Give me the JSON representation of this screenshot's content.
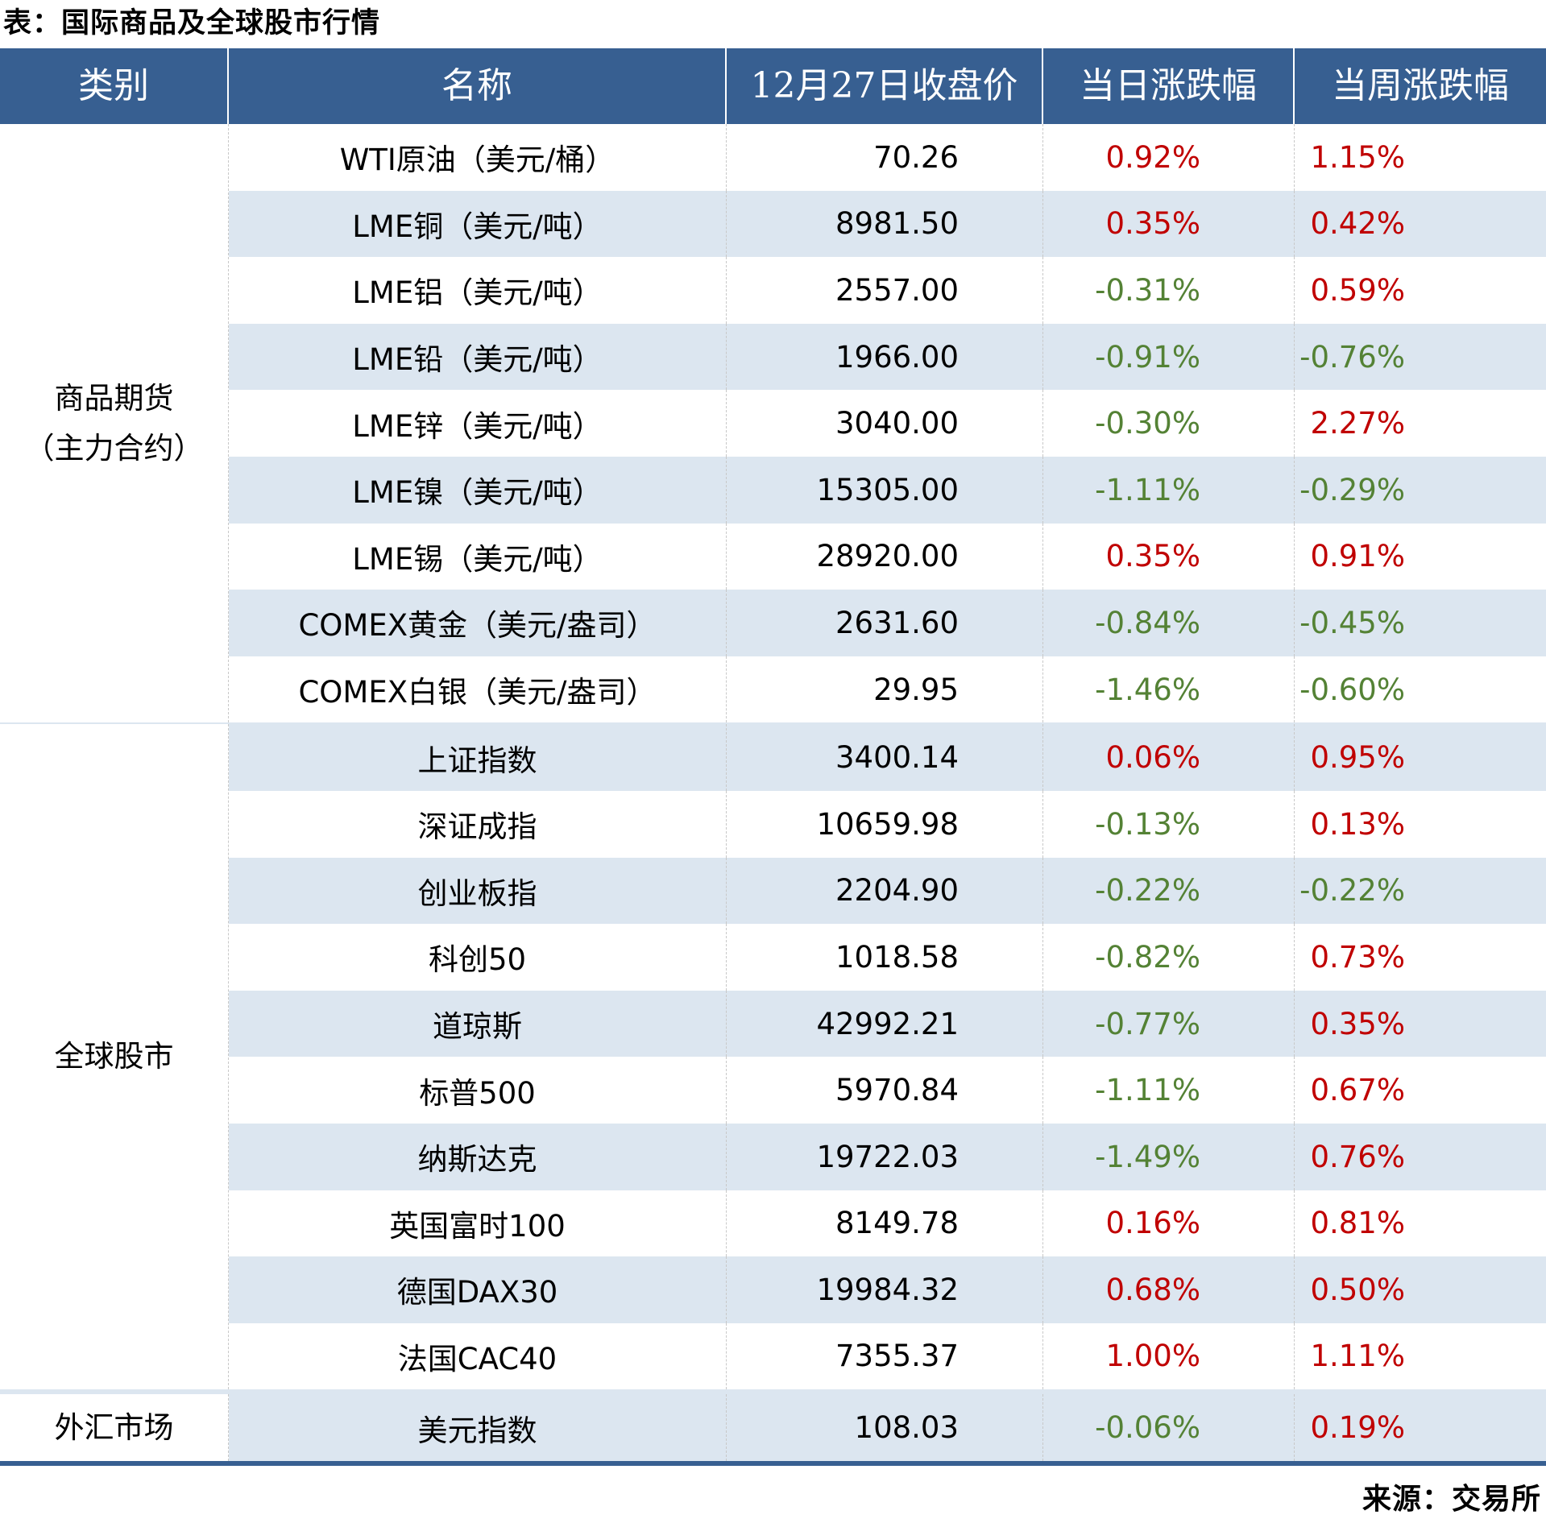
{
  "title": "表：国际商品及全球股市行情",
  "colors": {
    "header_bg": "#375F91",
    "stripe": "#DCE6F0",
    "up": "#C00000",
    "down": "#548235"
  },
  "header": {
    "category": "类别",
    "name": "名称",
    "price": "12月27日收盘价",
    "daily": "当日涨跌幅",
    "weekly": "当周涨跌幅"
  },
  "groups": [
    {
      "category_line1": "商品期货",
      "category_line2": "（主力合约）",
      "rows": [
        {
          "name": "WTI原油（美元/桶）",
          "price": "70.26",
          "daily": "0.92%",
          "weekly": "1.15%"
        },
        {
          "name": "LME铜（美元/吨）",
          "price": "8981.50",
          "daily": "0.35%",
          "weekly": "0.42%"
        },
        {
          "name": "LME铝（美元/吨）",
          "price": "2557.00",
          "daily": "-0.31%",
          "weekly": "0.59%"
        },
        {
          "name": "LME铅（美元/吨）",
          "price": "1966.00",
          "daily": "-0.91%",
          "weekly": "-0.76%"
        },
        {
          "name": "LME锌（美元/吨）",
          "price": "3040.00",
          "daily": "-0.30%",
          "weekly": "2.27%"
        },
        {
          "name": "LME镍（美元/吨）",
          "price": "15305.00",
          "daily": "-1.11%",
          "weekly": "-0.29%"
        },
        {
          "name": "LME锡（美元/吨）",
          "price": "28920.00",
          "daily": "0.35%",
          "weekly": "0.91%"
        },
        {
          "name": "COMEX黄金（美元/盎司）",
          "price": "2631.60",
          "daily": "-0.84%",
          "weekly": "-0.45%"
        },
        {
          "name": "COMEX白银（美元/盎司）",
          "price": "29.95",
          "daily": "-1.46%",
          "weekly": "-0.60%"
        }
      ]
    },
    {
      "category_line1": "全球股市",
      "rows": [
        {
          "name": "上证指数",
          "price": "3400.14",
          "daily": "0.06%",
          "weekly": "0.95%"
        },
        {
          "name": "深证成指",
          "price": "10659.98",
          "daily": "-0.13%",
          "weekly": "0.13%"
        },
        {
          "name": "创业板指",
          "price": "2204.90",
          "daily": "-0.22%",
          "weekly": "-0.22%"
        },
        {
          "name": "科创50",
          "price": "1018.58",
          "daily": "-0.82%",
          "weekly": "0.73%"
        },
        {
          "name": "道琼斯",
          "price": "42992.21",
          "daily": "-0.77%",
          "weekly": "0.35%"
        },
        {
          "name": "标普500",
          "price": "5970.84",
          "daily": "-1.11%",
          "weekly": "0.67%"
        },
        {
          "name": "纳斯达克",
          "price": "19722.03",
          "daily": "-1.49%",
          "weekly": "0.76%"
        },
        {
          "name": "英国富时100",
          "price": "8149.78",
          "daily": "0.16%",
          "weekly": "0.81%"
        },
        {
          "name": "德国DAX30",
          "price": "19984.32",
          "daily": "0.68%",
          "weekly": "0.50%"
        },
        {
          "name": "法国CAC40",
          "price": "7355.37",
          "daily": "1.00%",
          "weekly": "1.11%"
        }
      ]
    },
    {
      "category_line1": "外汇市场",
      "rows": [
        {
          "name": "美元指数",
          "price": "108.03",
          "daily": "-0.06%",
          "weekly": "0.19%"
        }
      ]
    }
  ],
  "source": "来源：交易所"
}
